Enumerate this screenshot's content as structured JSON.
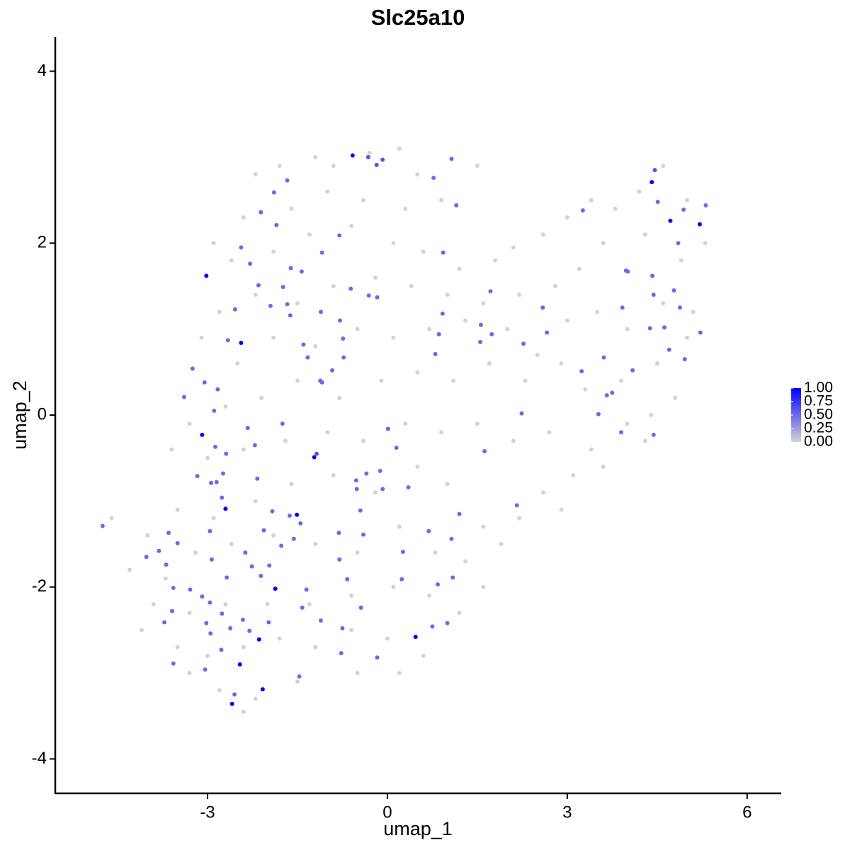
{
  "chart_data": {
    "type": "scatter",
    "title": "Slc25a10",
    "x_label": "umap_1",
    "y_label": "umap_2",
    "xlim": [
      -5.54,
      6.57
    ],
    "ylim": [
      -4.4,
      4.4
    ],
    "xticks": [
      -3,
      0,
      3,
      6
    ],
    "yticks": [
      -4,
      -2,
      0,
      2,
      4
    ],
    "color_low": "#d3d3d3",
    "color_high": "#0000ff",
    "color_lim": [
      0,
      1
    ],
    "color_ticks": [
      {
        "value": 0,
        "label": "0.00"
      },
      0.25,
      {
        "value": 0.5,
        "label": "0.50"
      },
      0.75,
      {
        "value": 1,
        "label": "1.00"
      }
    ],
    "x": [
      -2.2,
      -1.8,
      -1.2,
      -0.9,
      -0.3,
      0.2,
      0.5,
      1.5,
      0.9,
      0.3,
      -0.4,
      -1.0,
      -1.6,
      -2.4,
      -2.9,
      -2.6,
      -1.9,
      -1.3,
      -0.6,
      0.1,
      0.6,
      1.2,
      1.8,
      2.1,
      2.6,
      3.0,
      3.4,
      3.8,
      4.2,
      4.6,
      5.0,
      5.3,
      4.9,
      4.3,
      3.6,
      3.2,
      2.8,
      2.2,
      1.6,
      1.0,
      0.4,
      -0.2,
      -0.9,
      -1.5,
      -2.2,
      -2.8,
      -3.1,
      -2.5,
      -1.9,
      -1.2,
      -0.5,
      0.1,
      0.7,
      1.3,
      2.0,
      2.5,
      3.0,
      3.5,
      4.0,
      4.6,
      5.1,
      5.0,
      4.5,
      3.9,
      3.3,
      2.9,
      2.3,
      1.7,
      1.1,
      0.5,
      -0.1,
      -0.8,
      -1.5,
      -2.1,
      -2.7,
      -3.3,
      -3.6,
      -3.0,
      -2.4,
      -1.7,
      -1.0,
      -0.4,
      0.3,
      0.9,
      1.5,
      2.1,
      2.7,
      3.4,
      4.0,
      4.3,
      3.1,
      2.6,
      2.2,
      1.6,
      1.0,
      0.5,
      -0.2,
      -0.9,
      -1.6,
      -2.2,
      -2.9,
      -3.5,
      -4.0,
      -4.6,
      -4.3,
      -3.7,
      -3.2,
      -2.6,
      -1.9,
      -1.2,
      -0.5,
      0.2,
      0.8,
      1.3,
      1.6,
      1.2,
      0.7,
      0.1,
      -0.6,
      -1.3,
      -2.0,
      -2.7,
      -3.3,
      -3.9,
      -4.1,
      -3.5,
      -3.0,
      -2.4,
      -1.8,
      -1.2,
      -0.6,
      0.0,
      0.6,
      0.2,
      -0.5,
      -1.5,
      -2.2,
      -2.8,
      -3.3,
      -2.4,
      1.9,
      2.9,
      3.6,
      4.4,
      4.8,
      -0.58,
      -0.32,
      -0.18,
      -0.08,
      1.07,
      0.77,
      1.15,
      -1.89,
      -1.67,
      -2.11,
      -1.85,
      -2.44,
      -3.02,
      -2.29,
      -1.61,
      -1.43,
      -1.09,
      -0.8,
      -2.15,
      -1.74,
      -1.95,
      -2.54,
      -1.67,
      -0.61,
      -0.31,
      -0.17,
      -1.11,
      -0.79,
      -1.62,
      -2.44,
      -2.66,
      -1.4,
      -0.74,
      -1.33,
      -0.92,
      -1.12,
      -3.25,
      -3.05,
      -3.39,
      -2.83,
      -2.89,
      -3.09,
      -2.33,
      -1.75,
      -2.69,
      -2.87,
      -2.21,
      -1.22,
      -1.18,
      0.01,
      0.15,
      -0.35,
      -0.12,
      -0.08,
      -0.52,
      -0.51,
      0.35,
      -2.74,
      -3.17,
      -2.94,
      -2.85,
      -2.76,
      -2.17,
      -2.7,
      -1.92,
      -1.51,
      -1.63,
      -1.45,
      -0.45,
      1.2,
      2.16,
      1.62,
      2.24,
      -4.75,
      -3.65,
      -3.5,
      -2.96,
      -2.06,
      -1.77,
      -1.56,
      -0.81,
      -0.4,
      0.69,
      1.07,
      0.26,
      -4.02,
      -3.81,
      -3.69,
      -2.93,
      -2.37,
      -1.97,
      -0.8,
      -2.68,
      -2.11,
      -2.26,
      -1.87,
      -3.57,
      -3.29,
      -3.09,
      -2.96,
      -1.35,
      -0.67,
      0.24,
      0.84,
      1.09,
      -3.59,
      -1.42,
      -0.44,
      -3.72,
      -3.02,
      -2.76,
      -2.41,
      -1.98,
      -1.11,
      -0.75,
      0.75,
      1.0,
      0.47,
      -2.62,
      -2.3,
      -2.95,
      -2.14,
      -2.77,
      -0.77,
      -0.17,
      -3.57,
      -2.46,
      -3.04,
      -1.47,
      -2.08,
      -2.55,
      -2.59,
      4.41,
      4.46,
      4.72,
      5.21,
      5.31,
      4.94,
      4.51,
      3.26,
      3.98,
      4.01,
      4.42,
      4.85,
      4.78,
      4.44,
      4.88,
      3.92,
      1.72,
      2.59,
      1.56,
      2.66,
      4.38,
      4.62,
      5.22,
      4.7,
      2.27,
      3.61,
      4.09,
      3.24,
      4.96,
      3.75,
      3.66,
      3.52,
      3.9,
      4.44,
      1.55,
      0.92,
      0.93,
      1.74,
      0.86,
      0.8,
      -0.73,
      -1.09
    ],
    "y": [
      2.8,
      2.9,
      3.0,
      2.9,
      3.05,
      3.1,
      2.8,
      2.9,
      2.5,
      2.4,
      2.5,
      2.6,
      2.4,
      2.3,
      2.0,
      1.8,
      1.9,
      2.1,
      2.2,
      2.0,
      1.9,
      1.7,
      1.8,
      1.95,
      2.1,
      2.3,
      2.5,
      2.4,
      2.6,
      2.9,
      2.5,
      2.0,
      1.8,
      2.1,
      2.0,
      1.7,
      1.5,
      1.4,
      1.3,
      1.4,
      1.5,
      1.6,
      1.5,
      1.3,
      1.4,
      1.2,
      0.9,
      0.6,
      0.9,
      0.8,
      1.0,
      0.9,
      1.0,
      1.1,
      1.0,
      0.7,
      1.1,
      1.2,
      1.0,
      1.3,
      1.2,
      0.9,
      0.6,
      0.4,
      0.3,
      0.6,
      0.4,
      0.6,
      0.4,
      0.5,
      0.4,
      0.2,
      0.4,
      0.2,
      0.1,
      -0.1,
      -0.4,
      -0.5,
      -0.4,
      -0.3,
      -0.2,
      -0.3,
      -0.1,
      -0.2,
      -0.1,
      -0.3,
      -0.2,
      -0.4,
      -0.1,
      -0.3,
      -0.7,
      -0.9,
      -1.2,
      -1.3,
      -0.8,
      -0.6,
      -0.9,
      -0.7,
      -0.8,
      -1.0,
      -1.2,
      -1.1,
      -1.4,
      -1.2,
      -1.8,
      -1.9,
      -1.6,
      -1.5,
      -1.4,
      -1.5,
      -1.6,
      -1.3,
      -1.6,
      -1.7,
      -2.0,
      -2.3,
      -2.1,
      -2.0,
      -2.1,
      -2.2,
      -2.2,
      -2.2,
      -2.3,
      -2.2,
      -2.5,
      -2.7,
      -2.8,
      -2.7,
      -2.6,
      -2.7,
      -2.5,
      -2.6,
      -2.8,
      -3.0,
      -3.0,
      -3.1,
      -3.3,
      -3.2,
      -3.0,
      -3.45,
      -1.5,
      -1.1,
      -0.6,
      0.0,
      0.2,
      3.02,
      3.0,
      2.91,
      2.97,
      2.98,
      2.76,
      2.44,
      2.59,
      2.73,
      2.36,
      2.21,
      1.95,
      1.62,
      1.76,
      1.71,
      1.67,
      1.89,
      2.09,
      1.51,
      1.49,
      1.27,
      1.23,
      1.29,
      1.47,
      1.39,
      1.37,
      1.2,
      1.1,
      1.16,
      0.84,
      0.87,
      0.82,
      0.89,
      0.67,
      0.52,
      0.4,
      0.54,
      0.38,
      0.21,
      0.3,
      0.05,
      -0.23,
      -0.15,
      -0.1,
      -0.45,
      -0.37,
      -0.35,
      -0.49,
      -0.45,
      -0.16,
      -0.38,
      -0.68,
      -0.65,
      -0.86,
      -0.76,
      -0.86,
      -0.84,
      -0.68,
      -0.71,
      -0.79,
      -0.78,
      -0.96,
      -0.74,
      -1.09,
      -1.12,
      -1.16,
      -1.17,
      -1.26,
      -1.11,
      -1.15,
      -1.05,
      -0.42,
      0.02,
      -1.29,
      -1.37,
      -1.49,
      -1.35,
      -1.34,
      -1.52,
      -1.44,
      -1.37,
      -1.39,
      -1.35,
      -1.44,
      -1.59,
      -1.65,
      -1.58,
      -1.74,
      -1.68,
      -1.6,
      -1.75,
      -1.68,
      -1.89,
      -1.87,
      -1.76,
      -2.02,
      -2.01,
      -2.03,
      -2.11,
      -2.18,
      -2.03,
      -1.91,
      -1.91,
      -1.97,
      -1.89,
      -2.28,
      -2.24,
      -2.24,
      -2.41,
      -2.42,
      -2.31,
      -2.38,
      -2.41,
      -2.39,
      -2.48,
      -2.46,
      -2.42,
      -2.58,
      -2.48,
      -2.51,
      -2.54,
      -2.61,
      -2.73,
      -2.77,
      -2.82,
      -2.89,
      -2.9,
      -2.96,
      -3.04,
      -3.19,
      -3.25,
      -3.36,
      2.71,
      2.85,
      2.26,
      2.22,
      2.44,
      2.39,
      2.48,
      2.38,
      1.68,
      1.67,
      1.62,
      2.0,
      1.45,
      1.4,
      1.25,
      1.25,
      1.44,
      1.25,
      1.05,
      0.96,
      1.01,
      1.02,
      0.96,
      0.76,
      0.83,
      0.67,
      0.52,
      0.51,
      0.65,
      0.26,
      0.23,
      0.01,
      -0.2,
      -0.23,
      0.85,
      1.18,
      1.89,
      0.94,
      0.94,
      0.71,
      0.67,
      0.38
    ],
    "values": [
      0,
      0,
      0,
      0,
      0,
      0,
      0,
      0,
      0,
      0,
      0,
      0,
      0,
      0,
      0,
      0,
      0,
      0,
      0,
      0,
      0,
      0,
      0,
      0,
      0,
      0,
      0,
      0,
      0,
      0,
      0,
      0,
      0,
      0,
      0,
      0,
      0,
      0,
      0,
      0,
      0,
      0,
      0,
      0,
      0,
      0,
      0,
      0,
      0,
      0,
      0,
      0,
      0,
      0,
      0,
      0,
      0,
      0,
      0,
      0,
      0,
      0,
      0,
      0,
      0,
      0,
      0,
      0,
      0,
      0,
      0,
      0,
      0,
      0,
      0,
      0,
      0,
      0,
      0,
      0,
      0,
      0,
      0,
      0,
      0,
      0,
      0,
      0,
      0,
      0,
      0,
      0,
      0,
      0,
      0,
      0,
      0,
      0,
      0,
      0,
      0,
      0,
      0,
      0,
      0,
      0,
      0,
      0,
      0,
      0,
      0,
      0,
      0,
      0,
      0,
      0,
      0,
      0,
      0,
      0,
      0,
      0,
      0,
      0,
      0,
      0,
      0,
      0,
      0,
      0,
      0,
      0,
      0,
      0,
      0,
      0,
      0,
      0,
      0,
      0,
      0,
      0,
      0,
      0,
      0,
      1,
      0.6,
      0.6,
      0.6,
      0.5,
      0.5,
      0.5,
      0.5,
      0.5,
      0.5,
      0.5,
      0.5,
      1,
      0.5,
      0.5,
      0.5,
      0.5,
      0.5,
      0.5,
      0.5,
      0.5,
      0.5,
      0.5,
      0.5,
      0.5,
      0.5,
      0.5,
      0.5,
      0.5,
      1,
      0.5,
      0.5,
      0.5,
      0.5,
      0.5,
      0.5,
      0.5,
      0.5,
      0.5,
      0.5,
      0.5,
      1,
      0.5,
      0.5,
      0.5,
      0.5,
      0.5,
      1,
      0.6,
      0.5,
      0.5,
      0.5,
      0.5,
      0.5,
      0.5,
      0.5,
      0.5,
      0.5,
      0.5,
      0.5,
      0.5,
      0.5,
      0.5,
      1,
      0.5,
      1,
      0.5,
      0.5,
      0.5,
      0.5,
      0.5,
      0.5,
      0.5,
      0.5,
      0.5,
      0.5,
      0.5,
      0.5,
      0.5,
      0.5,
      0.5,
      0.5,
      0.5,
      0.5,
      0.5,
      0.5,
      0.5,
      0.5,
      0.5,
      0.5,
      0.5,
      0.5,
      0.5,
      0.5,
      0.5,
      1,
      0.5,
      0.5,
      0.5,
      0.5,
      0.5,
      0.5,
      0.5,
      0.5,
      0.5,
      0.5,
      0.5,
      0.5,
      0.5,
      0.5,
      0.5,
      0.5,
      0.5,
      0.5,
      0.5,
      0.5,
      0.5,
      1,
      0.5,
      0.5,
      0.5,
      1,
      0.5,
      0.5,
      0.5,
      0.5,
      1,
      0.5,
      0.5,
      1,
      0.5,
      1,
      1,
      0.6,
      1,
      1,
      0.5,
      0.5,
      0.5,
      0.5,
      0.5,
      0.5,
      0.5,
      0.5,
      0.5,
      0.5,
      0.5,
      0.5,
      0.5,
      0.5,
      0.5,
      0.5,
      0.5,
      0.5,
      0.5,
      0.5,
      0.5,
      0.5,
      0.5,
      0.5,
      0.5,
      0.5,
      0.5,
      0.5,
      0.5,
      0.5,
      0.5,
      0.5,
      0.5,
      0.5,
      0.5,
      0.5,
      0.5,
      0.5
    ]
  }
}
